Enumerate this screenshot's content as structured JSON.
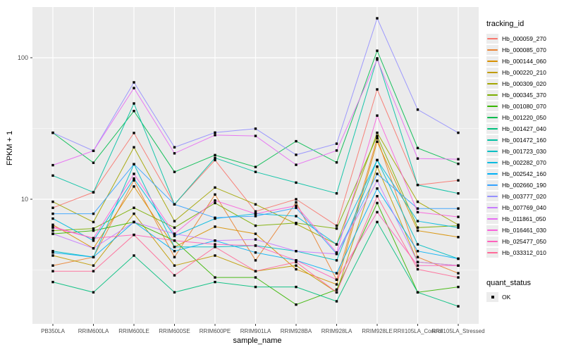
{
  "figure": {
    "panel_bg": "#EBEBEB",
    "grid_color": "#FFFFFF",
    "tick_color": "#333333",
    "axis_text_color": "#4D4D4D",
    "point_color": "#000000"
  },
  "chart_data": {
    "type": "line",
    "xlabel": "sample_name",
    "ylabel": "FPKM + 1",
    "y_scale": "log10",
    "y_tick_values": [
      10,
      100
    ],
    "y_tick_labels": [
      "10",
      "100"
    ],
    "ylim": [
      1.3,
      235
    ],
    "grid": true,
    "legend_position": "right",
    "legend_title": "tracking_id",
    "legend2_title": "quant_status",
    "legend2_items": [
      "OK"
    ],
    "point_shape": "square",
    "x_categories": [
      "PB350LA",
      "RRIM600LA",
      "RRIM600LE",
      "RRIM600SE",
      "RRIM600PE",
      "RRIM901LA",
      "RRIM928BA",
      "RRIM928LA",
      "RRIM928LE",
      "RRII105LA_Control",
      "RRII105LA_Stressed"
    ],
    "series": [
      {
        "name": "Hb_000059_270",
        "color": "#F8766D",
        "values": [
          8.7,
          11.2,
          29.4,
          9.2,
          18.9,
          8.2,
          10.0,
          6.5,
          59.7,
          12.6,
          13.6
        ]
      },
      {
        "name": "Hb_000085_070",
        "color": "#EA8331",
        "values": [
          3.4,
          3.9,
          13.6,
          3.9,
          10.8,
          3.7,
          9.5,
          2.7,
          27.0,
          3.9,
          3.0
        ]
      },
      {
        "name": "Hb_000144_060",
        "color": "#D89000",
        "values": [
          6.6,
          4.5,
          12.3,
          4.6,
          6.4,
          5.7,
          3.2,
          2.5,
          25.5,
          6.0,
          5.4
        ]
      },
      {
        "name": "Hb_000220_210",
        "color": "#C09B00",
        "values": [
          4.0,
          3.4,
          7.9,
          3.4,
          4.0,
          3.1,
          3.4,
          2.2,
          17.0,
          3.6,
          3.4
        ]
      },
      {
        "name": "Hb_000309_020",
        "color": "#A3A500",
        "values": [
          9.6,
          6.9,
          23.3,
          7.0,
          12.1,
          9.2,
          6.7,
          4.8,
          29.5,
          9.6,
          6.6
        ]
      },
      {
        "name": "Hb_000345_370",
        "color": "#7CAE00",
        "values": [
          6.0,
          6.2,
          8.7,
          6.3,
          9.4,
          6.5,
          6.8,
          6.2,
          28.0,
          6.3,
          6.5
        ]
      },
      {
        "name": "Hb_001080_070",
        "color": "#39B600",
        "values": [
          5.7,
          6.0,
          6.9,
          5.1,
          2.8,
          2.8,
          1.8,
          2.3,
          9.4,
          2.2,
          2.4
        ]
      },
      {
        "name": "Hb_001220_050",
        "color": "#00BB4E",
        "values": [
          29.5,
          18.1,
          42.0,
          15.6,
          20.5,
          16.9,
          25.7,
          18.2,
          112.0,
          23.0,
          17.8
        ]
      },
      {
        "name": "Hb_001427_040",
        "color": "#00BF7D",
        "values": [
          2.6,
          2.2,
          4.0,
          2.2,
          2.6,
          2.4,
          2.4,
          1.9,
          6.9,
          2.2,
          1.75
        ]
      },
      {
        "name": "Hb_001472_160",
        "color": "#00C1A3",
        "values": [
          14.7,
          11.2,
          47.5,
          9.2,
          19.6,
          15.6,
          13.1,
          11.0,
          99.0,
          12.6,
          11.0
        ]
      },
      {
        "name": "Hb_001723_030",
        "color": "#00BFC4",
        "values": [
          4.3,
          3.9,
          17.7,
          4.6,
          4.6,
          4.7,
          4.3,
          3.7,
          18.9,
          4.8,
          3.8
        ]
      },
      {
        "name": "Hb_002282_070",
        "color": "#00BAE0",
        "values": [
          7.3,
          5.1,
          14.0,
          5.5,
          7.3,
          7.9,
          7.6,
          4.8,
          18.9,
          7.0,
          6.3
        ]
      },
      {
        "name": "Hb_002542_160",
        "color": "#00B0F6",
        "values": [
          4.2,
          3.9,
          6.9,
          4.3,
          5.1,
          4.2,
          3.7,
          3.0,
          11.9,
          4.3,
          3.8
        ]
      },
      {
        "name": "Hb_002660_190",
        "color": "#35A2FF",
        "values": [
          7.9,
          7.9,
          17.7,
          9.2,
          7.4,
          7.6,
          8.7,
          4.1,
          15.1,
          8.6,
          8.6
        ]
      },
      {
        "name": "Hb_003777_020",
        "color": "#9590FF",
        "values": [
          29.5,
          22.0,
          67.0,
          23.3,
          29.6,
          31.5,
          20.6,
          24.7,
          190.0,
          43.0,
          29.5
        ]
      },
      {
        "name": "Hb_007769_040",
        "color": "#C77CFF",
        "values": [
          5.7,
          4.5,
          6.9,
          5.7,
          5.1,
          5.2,
          4.3,
          4.1,
          13.5,
          3.6,
          3.4
        ]
      },
      {
        "name": "Hb_011861_050",
        "color": "#E76BF3",
        "values": [
          17.4,
          22.0,
          61.0,
          21.1,
          28.4,
          28.0,
          17.5,
          22.1,
          97.0,
          19.4,
          19.2
        ]
      },
      {
        "name": "Hb_016461_030",
        "color": "#FA62DB",
        "values": [
          6.3,
          5.3,
          15.1,
          5.7,
          9.8,
          7.9,
          9.0,
          4.2,
          39.0,
          8.1,
          7.5
        ]
      },
      {
        "name": "Hb_025477_050",
        "color": "#FF62BC",
        "values": [
          6.4,
          5.3,
          5.6,
          5.1,
          4.8,
          4.7,
          3.7,
          2.7,
          8.1,
          3.4,
          3.4
        ]
      },
      {
        "name": "Hb_033312_010",
        "color": "#FF6A98",
        "values": [
          3.1,
          3.1,
          5.6,
          2.9,
          4.6,
          3.1,
          3.6,
          2.2,
          10.5,
          3.2,
          2.8
        ]
      }
    ]
  }
}
